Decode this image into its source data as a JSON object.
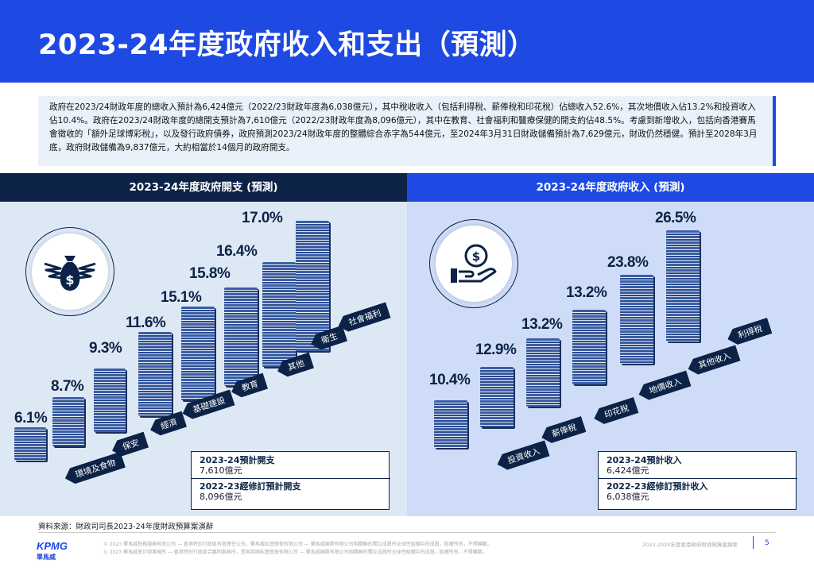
{
  "title": "2023-24年度政府收入和支出（預測）",
  "summary": "政府在2023/24財政年度的總收入預計為6,424億元（2022/23財政年度為6,038億元），其中稅收收入（包括利得稅、薪俸稅和印花稅）佔總收入52.6%，其次地價收入佔13.2%和投資收入佔10.4%。政府在2023/24財政年度的總開支預計為7,610億元（2022/23財政年度為8,096億元），其中在教育、社會福利和醫療保健的開支約佔48.5%。考慮到新增收入，包括向香港賽馬會徵收的「額外足球博彩稅」，以及發行政府債券，政府預測2023/24財政年度的整體綜合赤字為544億元，至2024年3月31日財政儲備預計為7,629億元，財政仍然穩健。預計至2028年3月底，政府財政儲備為9,837億元，大約相當於14個月的政府開支。",
  "expenditure": {
    "heading": "2023-24年度政府開支 (預測)",
    "icon": "money-bag-wings-icon",
    "items": [
      {
        "label": "環境及食物",
        "pct": "6.1%"
      },
      {
        "label": "保安",
        "pct": "8.7%"
      },
      {
        "label": "經濟",
        "pct": "9.3%"
      },
      {
        "label": "基礎建設",
        "pct": "11.6%"
      },
      {
        "label": "教育",
        "pct": "15.1%"
      },
      {
        "label": "其他",
        "pct": "15.8%"
      },
      {
        "label": "衛生",
        "pct": "16.4%"
      },
      {
        "label": "社會福利",
        "pct": "17.0%"
      }
    ],
    "box": {
      "l1": "2023-24預計開支",
      "v1": "7,610億元",
      "l2": "2022-23經修訂預計開支",
      "v2": "8,096億元"
    }
  },
  "revenue": {
    "heading": "2023-24年度政府收入 (預測)",
    "icon": "hand-coin-icon",
    "items": [
      {
        "label": "投資收入",
        "pct": "10.4%"
      },
      {
        "label": "薪俸稅",
        "pct": "12.9%"
      },
      {
        "label": "印花稅",
        "pct": "13.2%"
      },
      {
        "label": "地價收入",
        "pct": "13.2%"
      },
      {
        "label": "其他收入",
        "pct": "23.8%"
      },
      {
        "label": "利得稅",
        "pct": "26.5%"
      }
    ],
    "box": {
      "l1": "2023-24預計收入",
      "v1": "6,424億元",
      "l2": "2022-23經修訂預計收入",
      "v2": "6,038億元"
    }
  },
  "source": "資料來源：財政司司長2023-24年度財政預算案演辭",
  "footer": {
    "logo": "KPMG",
    "logo_sub": "畢馬威",
    "copy1": "© 2023 畢馬威稅務服務有限公司 — 香港特別行政區有限責任公司，畢馬威私營擔保有限公司 — 畢馬威國際有限公司相關聯的獨立成員所全球性組織中的成員。版權所有，不得轉載。",
    "copy2": "© 2023 畢馬威會計師事務所 — 香港特別行政區合夥制事務所，是與英國私營擔保有限公司 — 畢馬威國際有限公司相關聯的獨立成員所全球性組織中的成員。版權所有，不得轉載。",
    "doc_title": "2023-2024年度香港政府財政預算案摘要",
    "page": "5"
  }
}
